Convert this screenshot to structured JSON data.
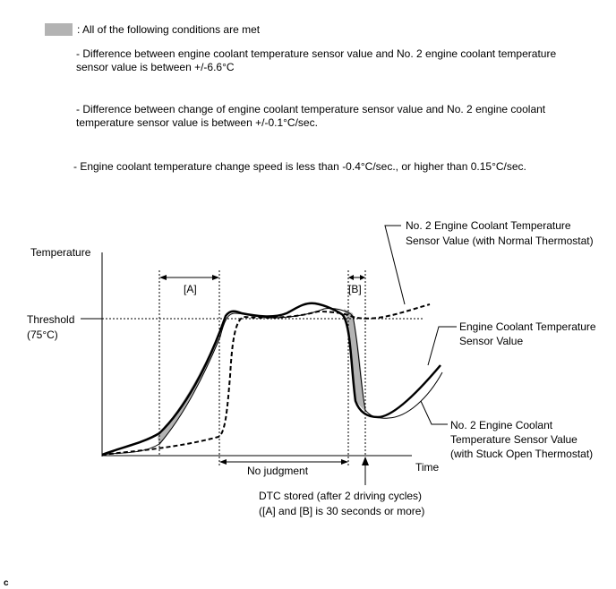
{
  "legend": {
    "label": ": All of the following conditions are met",
    "conditions": [
      "- Difference between engine coolant temperature sensor value and No. 2 engine coolant temperature",
      "sensor value is between +/-6.6°C",
      "- Difference between change of engine coolant temperature sensor value and No. 2 engine coolant",
      "temperature sensor value is between +/-0.1°C/sec.",
      "- Engine coolant temperature change speed is less than -0.4°C/sec., or higher than 0.15°C/sec."
    ]
  },
  "diagram": {
    "y_axis_label": "Temperature",
    "x_axis_label": "Time",
    "threshold_label": "Threshold",
    "threshold_value": "(75°C)",
    "interval_a": "[A]",
    "interval_b": "[B]",
    "no_judgment": "No judgment",
    "dtc_line1": "DTC stored (after 2 driving cycles)",
    "dtc_line2": "([A] and [B] is 30 seconds or more)",
    "callout_no2_normal_1": "No. 2 Engine Coolant Temperature",
    "callout_no2_normal_2": "Sensor Value (with Normal Thermostat)",
    "callout_ect_1": "Engine Coolant Temperature",
    "callout_ect_2": "Sensor Value",
    "callout_no2_stuck_1": "No. 2 Engine Coolant",
    "callout_no2_stuck_2": "Temperature Sensor Value",
    "callout_no2_stuck_3": "(with Stuck Open Thermostat)"
  },
  "figure_code": "c",
  "colors": {
    "shade": "#b3b3b3",
    "line": "#000000"
  }
}
